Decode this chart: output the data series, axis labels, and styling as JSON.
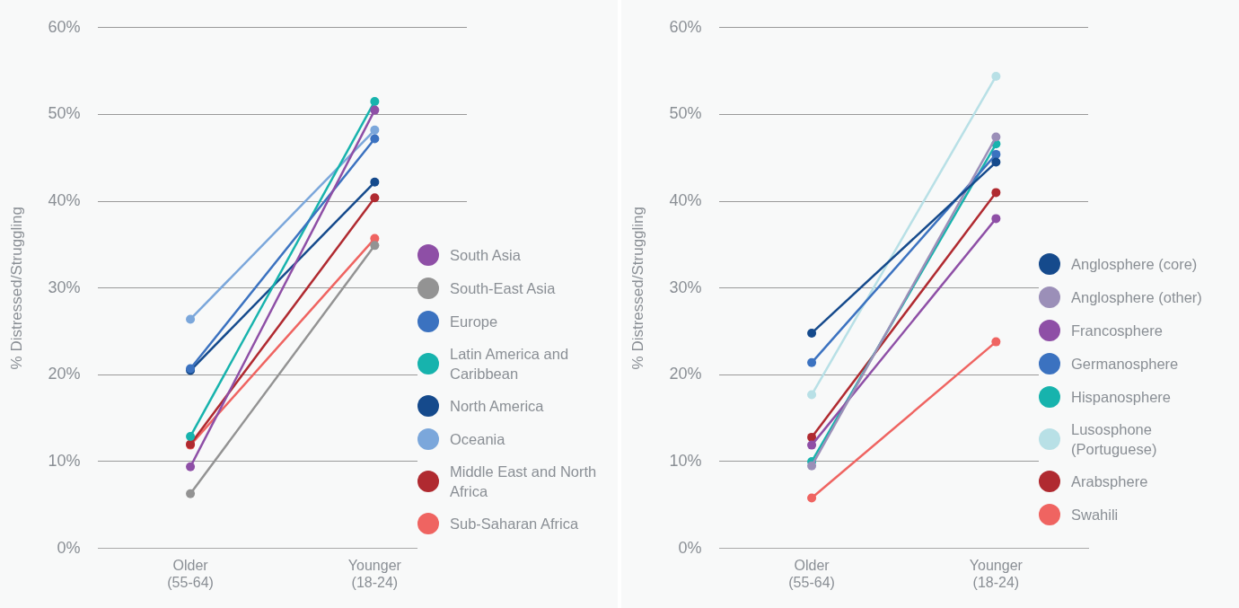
{
  "chart_data": [
    {
      "type": "line",
      "categories": [
        "Older\n(55-64)",
        "Younger\n(18-24)"
      ],
      "ylabel": "% Distressed/Struggling",
      "ylim": [
        0,
        60
      ],
      "yticks": [
        {
          "value": 0,
          "label": "0%"
        },
        {
          "value": 10,
          "label": "10%"
        },
        {
          "value": 20,
          "label": "20%"
        },
        {
          "value": 30,
          "label": "30%"
        },
        {
          "value": 40,
          "label": "40%"
        },
        {
          "value": 50,
          "label": "50%"
        },
        {
          "value": 60,
          "label": "60%"
        }
      ],
      "grid": "y",
      "legend": "right",
      "marker": "circle",
      "series": [
        {
          "name": "South Asia",
          "color": "#8e4fa6",
          "values": [
            9.4,
            50.5
          ]
        },
        {
          "name": "South-East Asia",
          "color": "#939393",
          "values": [
            6.3,
            34.9
          ]
        },
        {
          "name": "Europe",
          "color": "#3b72c0",
          "values": [
            20.7,
            47.2
          ]
        },
        {
          "name": "Latin America and Caribbean",
          "color": "#17b3ad",
          "values": [
            12.9,
            51.5
          ]
        },
        {
          "name": "North America",
          "color": "#154a8c",
          "values": [
            20.5,
            42.2
          ]
        },
        {
          "name": "Oceania",
          "color": "#7ba7db",
          "values": [
            26.4,
            48.2
          ]
        },
        {
          "name": "Middle East and North Africa",
          "color": "#b02a30",
          "values": [
            12.0,
            40.4
          ]
        },
        {
          "name": "Sub-Saharan Africa",
          "color": "#ef6461",
          "values": [
            11.9,
            35.7
          ]
        }
      ]
    },
    {
      "type": "line",
      "categories": [
        "Older\n(55-64)",
        "Younger\n(18-24)"
      ],
      "ylabel": "% Distressed/Struggling",
      "ylim": [
        0,
        60
      ],
      "yticks": [
        {
          "value": 0,
          "label": "0%"
        },
        {
          "value": 10,
          "label": "10%"
        },
        {
          "value": 20,
          "label": "20%"
        },
        {
          "value": 30,
          "label": "30%"
        },
        {
          "value": 40,
          "label": "40%"
        },
        {
          "value": 50,
          "label": "50%"
        },
        {
          "value": 60,
          "label": "60%"
        }
      ],
      "grid": "y",
      "legend": "right",
      "marker": "circle",
      "series": [
        {
          "name": "Anglosphere (core)",
          "color": "#154a8c",
          "values": [
            24.8,
            44.5
          ]
        },
        {
          "name": "Anglosphere (other)",
          "color": "#9b8fb8",
          "values": [
            9.5,
            47.4
          ]
        },
        {
          "name": "Francosphere",
          "color": "#8e4fa6",
          "values": [
            11.9,
            38.0
          ]
        },
        {
          "name": "Germanosphere",
          "color": "#3b72c0",
          "values": [
            21.4,
            45.4
          ]
        },
        {
          "name": "Hispanosphere",
          "color": "#17b3ad",
          "values": [
            10.0,
            46.6
          ]
        },
        {
          "name": "Lusosphone (Portuguese)",
          "color": "#b8e0e6",
          "values": [
            17.7,
            54.4
          ]
        },
        {
          "name": "Arabsphere",
          "color": "#b02a30",
          "values": [
            12.8,
            41.0
          ]
        },
        {
          "name": "Swahili",
          "color": "#ef6461",
          "values": [
            5.8,
            23.8
          ]
        }
      ]
    }
  ]
}
